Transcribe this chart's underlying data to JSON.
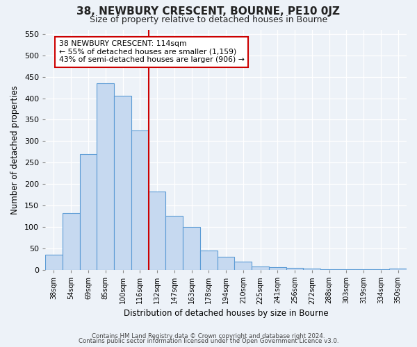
{
  "title": "38, NEWBURY CRESCENT, BOURNE, PE10 0JZ",
  "subtitle": "Size of property relative to detached houses in Bourne",
  "xlabel": "Distribution of detached houses by size in Bourne",
  "ylabel": "Number of detached properties",
  "bar_labels": [
    "38sqm",
    "54sqm",
    "69sqm",
    "85sqm",
    "100sqm",
    "116sqm",
    "132sqm",
    "147sqm",
    "163sqm",
    "178sqm",
    "194sqm",
    "210sqm",
    "225sqm",
    "241sqm",
    "256sqm",
    "272sqm",
    "288sqm",
    "303sqm",
    "319sqm",
    "334sqm",
    "350sqm"
  ],
  "bar_values": [
    35,
    133,
    270,
    435,
    405,
    325,
    183,
    126,
    100,
    46,
    30,
    20,
    8,
    7,
    5,
    3,
    2,
    1,
    1,
    1,
    3
  ],
  "bar_color": "#c6d9f0",
  "bar_edge_color": "#5b9bd5",
  "vline_x": 5.5,
  "vline_color": "#cc0000",
  "annotation_title": "38 NEWBURY CRESCENT: 114sqm",
  "annotation_line1": "← 55% of detached houses are smaller (1,159)",
  "annotation_line2": "43% of semi-detached houses are larger (906) →",
  "annotation_box_edge": "#cc0000",
  "annotation_box_bg": "white",
  "ylim": [
    0,
    560
  ],
  "yticks": [
    0,
    50,
    100,
    150,
    200,
    250,
    300,
    350,
    400,
    450,
    500,
    550
  ],
  "footer1": "Contains HM Land Registry data © Crown copyright and database right 2024.",
  "footer2": "Contains public sector information licensed under the Open Government Licence v3.0.",
  "background_color": "#edf2f8"
}
